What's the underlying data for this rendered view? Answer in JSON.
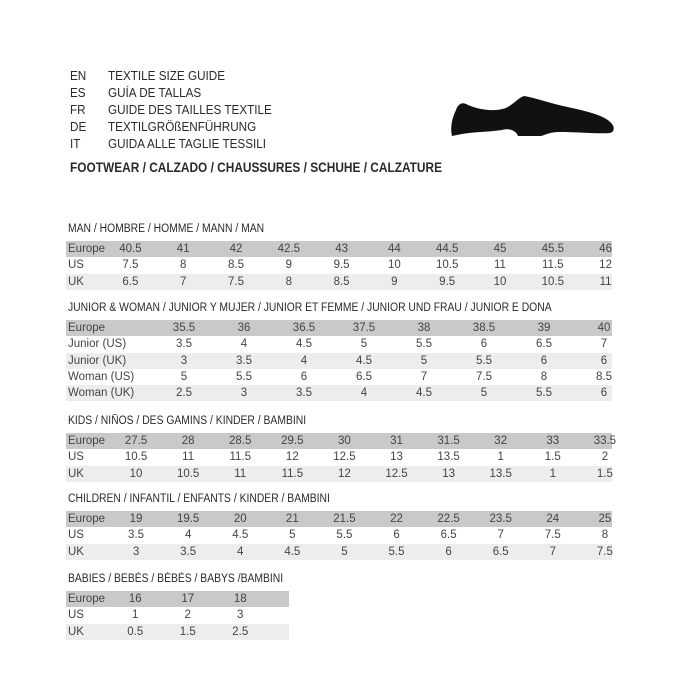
{
  "header": {
    "lines": [
      {
        "code": "EN",
        "text": "TEXTILE SIZE GUIDE"
      },
      {
        "code": "ES",
        "text": "GUÍA DE TALLAS"
      },
      {
        "code": "FR",
        "text": "GUIDE DES TAILLES TEXTILE"
      },
      {
        "code": "DE",
        "text": "TEXTILGRÖßENFÜHRUNG"
      },
      {
        "code": "IT",
        "text": "GUIDA ALLE TAGLIE TESSILI"
      }
    ],
    "footwear_title": "FOOTWEAR / CALZADO / CHAUSSURES / SCHUHE / CALZATURE",
    "icon": "shoe-icon"
  },
  "colors": {
    "header_row": "#c9c9c9",
    "alt_row": "#ededed"
  },
  "sections": [
    {
      "title": "MAN / HOMBRE / HOMME / MANN / MAN",
      "rows": [
        {
          "label": "Europe",
          "values": [
            "40.5",
            "41",
            "42",
            "42.5",
            "43",
            "44",
            "44.5",
            "45",
            "45.5",
            "46"
          ]
        },
        {
          "label": "US",
          "values": [
            "7.5",
            "8",
            "8.5",
            "9",
            "9.5",
            "10",
            "10.5",
            "11",
            "11.5",
            "12"
          ]
        },
        {
          "label": "UK",
          "values": [
            "6.5",
            "7",
            "7.5",
            "8",
            "8.5",
            "9",
            "9.5",
            "10",
            "10.5",
            "11"
          ]
        }
      ]
    },
    {
      "title": "JUNIOR & WOMAN / JUNIOR Y MUJER / JUNIOR ET FEMME / JUNIOR UND FRAU / JUNIOR E DONA",
      "rows": [
        {
          "label": "Europe",
          "values": [
            "35.5",
            "36",
            "36.5",
            "37.5",
            "38",
            "38.5",
            "39",
            "40"
          ]
        },
        {
          "label": "Junior (US)",
          "values": [
            "3.5",
            "4",
            "4.5",
            "5",
            "5.5",
            "6",
            "6.5",
            "7"
          ]
        },
        {
          "label": "Junior (UK)",
          "values": [
            "3",
            "3.5",
            "4",
            "4.5",
            "5",
            "5.5",
            "6",
            "6"
          ]
        },
        {
          "label": "Woman (US)",
          "values": [
            "5",
            "5.5",
            "6",
            "6.5",
            "7",
            "7.5",
            "8",
            "8.5"
          ]
        },
        {
          "label": "Woman (UK)",
          "values": [
            "2.5",
            "3",
            "3.5",
            "4",
            "4.5",
            "5",
            "5.5",
            "6"
          ]
        }
      ]
    },
    {
      "title": "KIDS / NIÑOS / DES GAMINS / KINDER / BAMBINI",
      "rows": [
        {
          "label": "Europe",
          "values": [
            "27.5",
            "28",
            "28.5",
            "29.5",
            "30",
            "31",
            "31.5",
            "32",
            "33",
            "33.5"
          ]
        },
        {
          "label": "US",
          "values": [
            "10.5",
            "11",
            "11.5",
            "12",
            "12.5",
            "13",
            "13.5",
            "1",
            "1.5",
            "2"
          ]
        },
        {
          "label": "UK",
          "values": [
            "10",
            "10.5",
            "11",
            "11.5",
            "12",
            "12.5",
            "13",
            "13.5",
            "1",
            "1.5"
          ]
        }
      ]
    },
    {
      "title": "CHILDREN / INFANTIL / ENFANTS / KINDER / BAMBINI",
      "rows": [
        {
          "label": "Europe",
          "values": [
            "19",
            "19.5",
            "20",
            "21",
            "21.5",
            "22",
            "22.5",
            "23.5",
            "24",
            "25"
          ]
        },
        {
          "label": "US",
          "values": [
            "3.5",
            "4",
            "4.5",
            "5",
            "5.5",
            "6",
            "6.5",
            "7",
            "7.5",
            "8"
          ]
        },
        {
          "label": "UK",
          "values": [
            "3",
            "3.5",
            "4",
            "4.5",
            "5",
            "5.5",
            "6",
            "6.5",
            "7",
            "7.5"
          ]
        }
      ]
    },
    {
      "title": "BABIES  / BEBÉS / BÉBÉS / BABYS /BAMBINI",
      "rows": [
        {
          "label": "Europe",
          "values": [
            "16",
            "17",
            "18"
          ]
        },
        {
          "label": "US",
          "values": [
            "1",
            "2",
            "3"
          ]
        },
        {
          "label": "UK",
          "values": [
            "0.5",
            "1.5",
            "2.5"
          ]
        }
      ]
    }
  ]
}
